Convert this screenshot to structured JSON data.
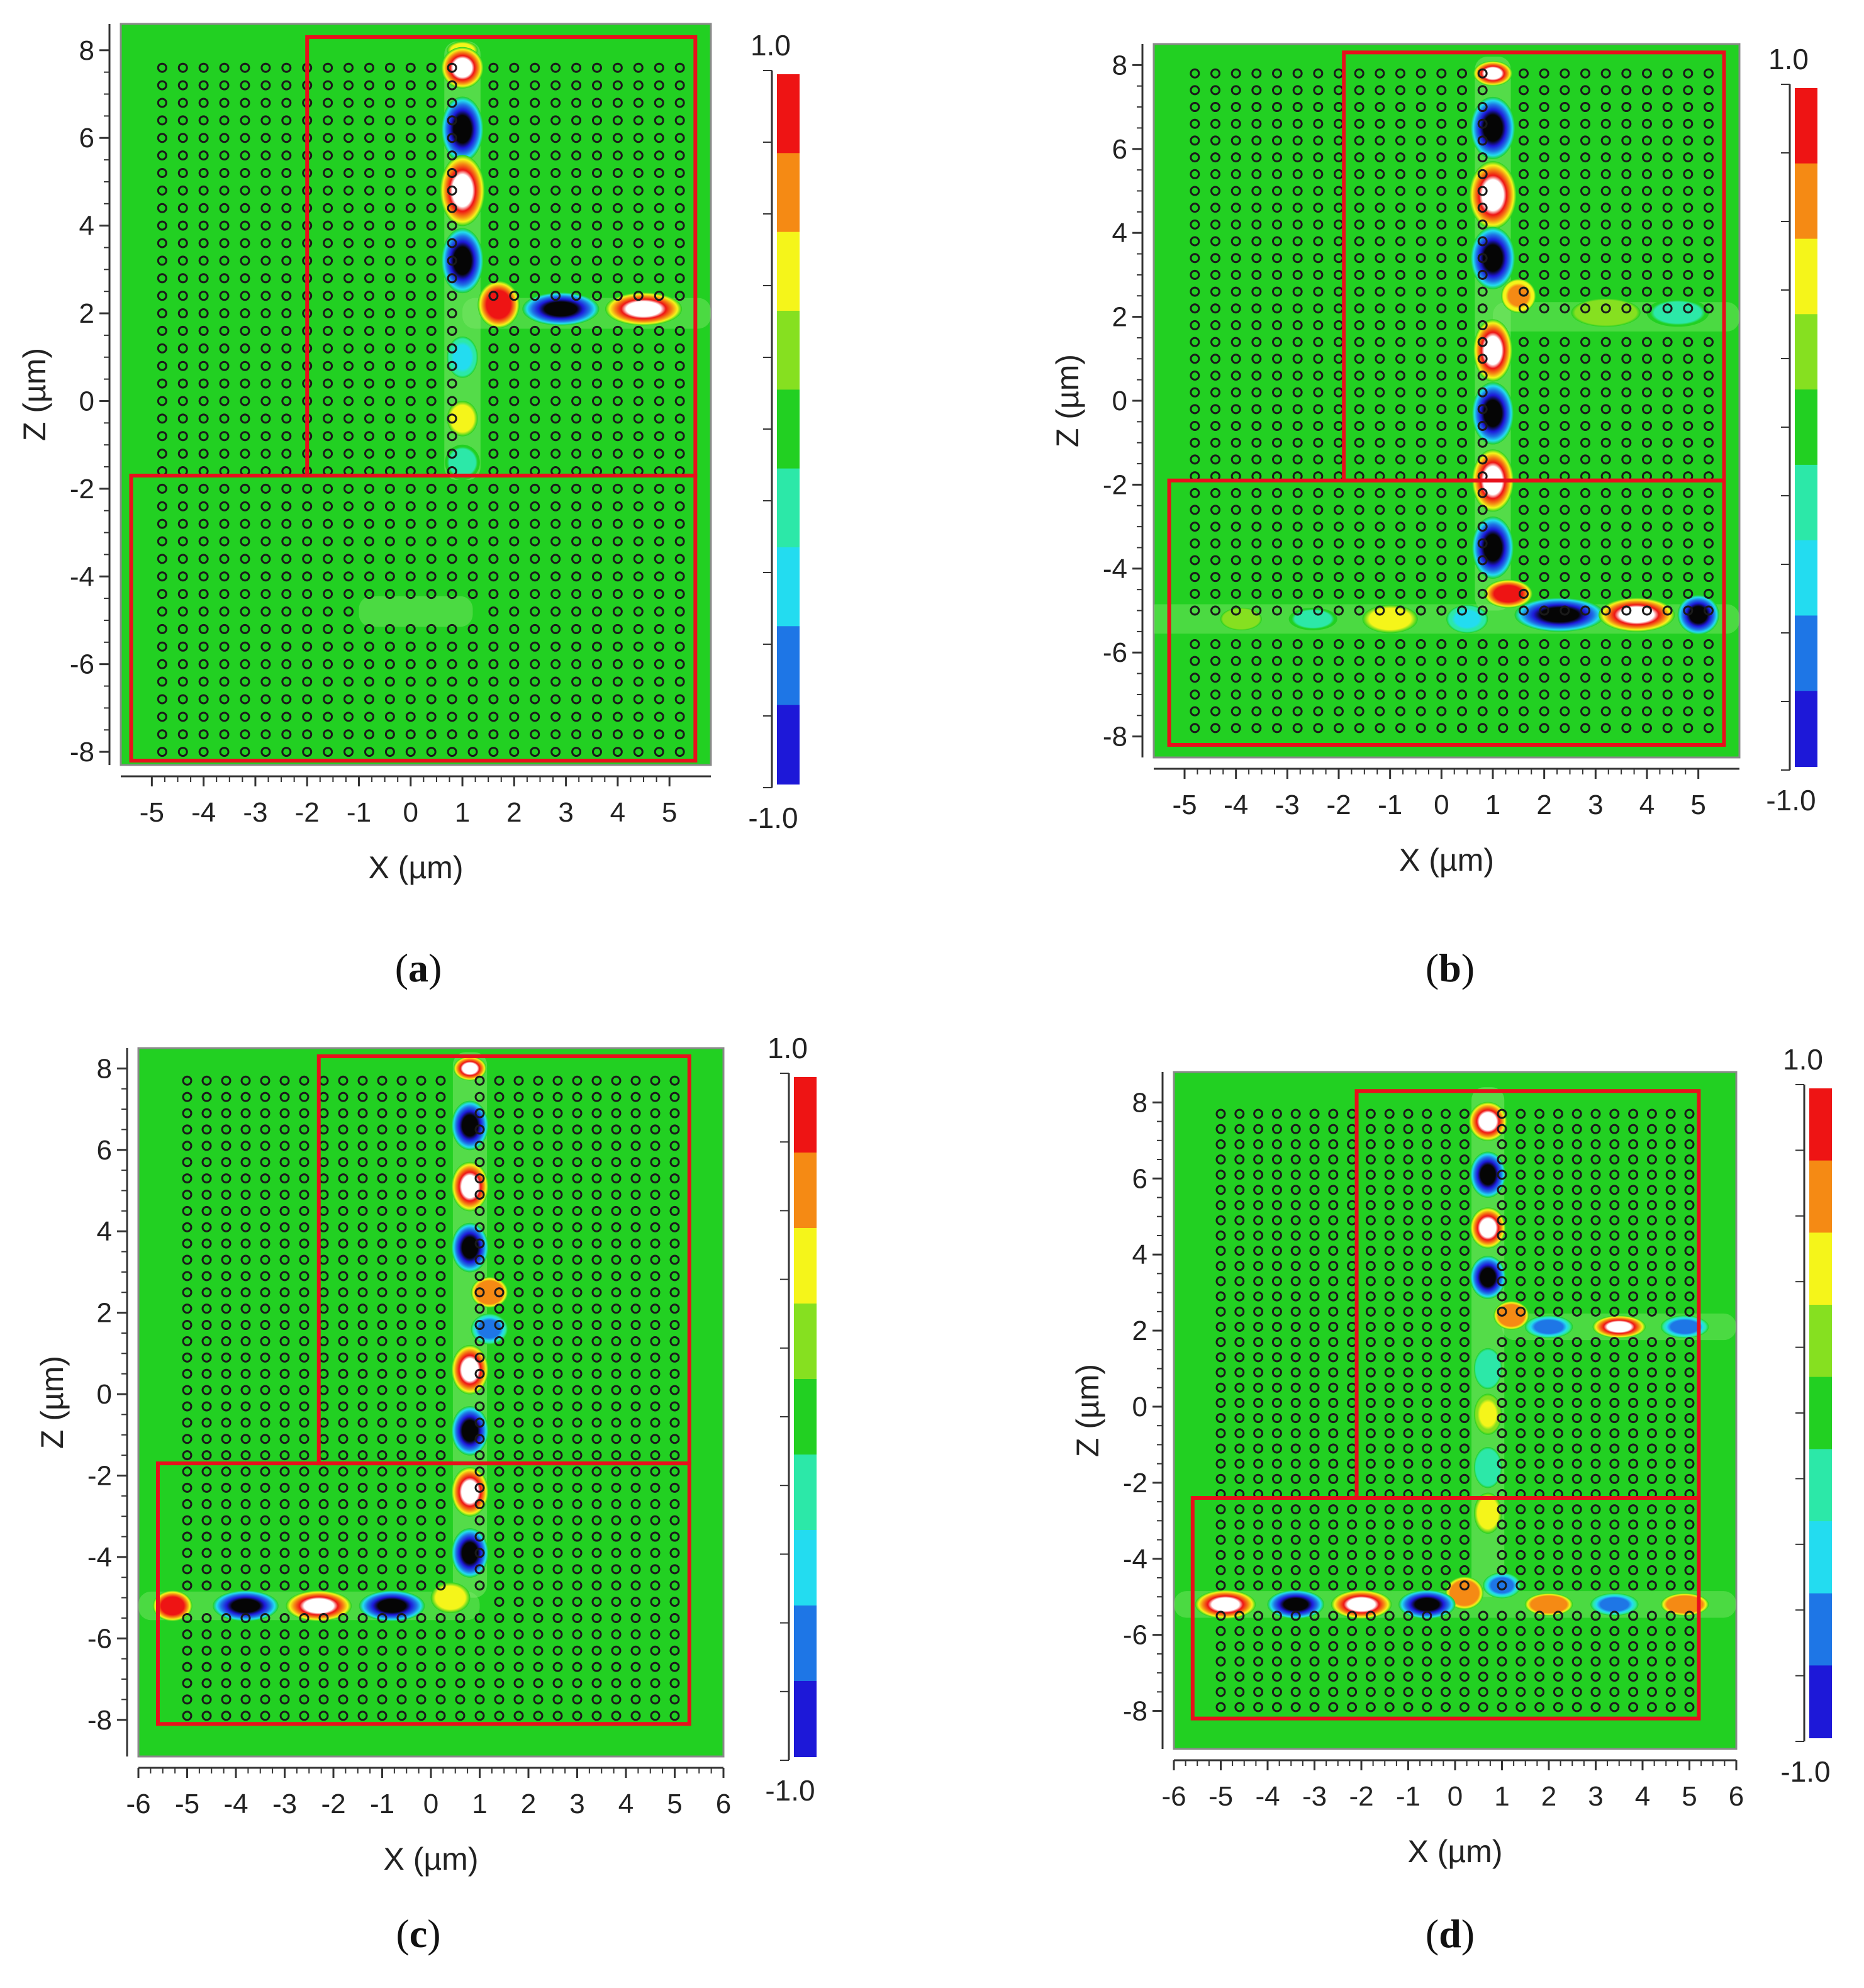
{
  "figure": {
    "panel_count": 4
  },
  "colors": {
    "field_zero": "#22d022",
    "border_red": "#e8101c",
    "rod_dark": "#1a1a1a",
    "colormap": [
      "#1d18d8",
      "#1e76e6",
      "#23dcf0",
      "#2ce8a8",
      "#22d022",
      "#86e020",
      "#f5f51a",
      "#f58a14",
      "#ee1414"
    ]
  },
  "chart_data": [
    {
      "type": "heatmap",
      "caption": "(a)",
      "caption_letter": "a",
      "xlabel": "X (µm)",
      "ylabel": "Z (µm)",
      "xlim": [
        -5.6,
        5.8
      ],
      "ylim": [
        -8.3,
        8.6
      ],
      "xticks": [
        -5,
        -4,
        -3,
        -2,
        -1,
        0,
        1,
        2,
        3,
        4,
        5
      ],
      "yticks": [
        -8,
        -6,
        -4,
        -2,
        0,
        2,
        4,
        6,
        8
      ],
      "colorbar": {
        "max_label": "1.0",
        "min_label": "-1.0",
        "range": [
          -1.0,
          1.0
        ]
      },
      "rod_lattice": {
        "x_start": -4.8,
        "x_end": 5.4,
        "y_start": -8.0,
        "y_end": 7.9,
        "step": 0.4
      },
      "waveguide_paths": [
        {
          "axis": "x",
          "at": 1.0,
          "from": -1.8,
          "to": 8.2
        },
        {
          "axis": "y",
          "at": 2.0,
          "from": 1.0,
          "to": 5.8
        },
        {
          "axis": "y",
          "at": -4.8,
          "from": -1.0,
          "to": 1.2
        }
      ],
      "borders": [
        {
          "x": [
            -2.0,
            5.5
          ],
          "y": [
            -1.7,
            8.3
          ]
        },
        {
          "x": [
            -5.4,
            5.5
          ],
          "y": [
            -8.2,
            -1.7
          ]
        }
      ],
      "field_lobes": [
        {
          "x": 1.0,
          "y": 8.0,
          "value": 0.55,
          "rx": 0.22,
          "ry": 0.15
        },
        {
          "x": 1.0,
          "y": 7.6,
          "value": 1.0,
          "rx": 0.3,
          "ry": 0.35
        },
        {
          "x": 1.0,
          "y": 6.2,
          "value": -1.0,
          "rx": 0.3,
          "ry": 0.55
        },
        {
          "x": 1.0,
          "y": 4.8,
          "value": 1.0,
          "rx": 0.32,
          "ry": 0.6
        },
        {
          "x": 1.0,
          "y": 3.2,
          "value": -1.0,
          "rx": 0.3,
          "ry": 0.55
        },
        {
          "x": 1.7,
          "y": 2.2,
          "value": 0.9,
          "rx": 0.3,
          "ry": 0.4
        },
        {
          "x": 1.0,
          "y": 1.0,
          "value": -0.45,
          "rx": 0.22,
          "ry": 0.35
        },
        {
          "x": 1.0,
          "y": -0.4,
          "value": 0.5,
          "rx": 0.22,
          "ry": 0.3
        },
        {
          "x": 1.0,
          "y": -1.4,
          "value": -0.3,
          "rx": 0.25,
          "ry": 0.3
        },
        {
          "x": 2.9,
          "y": 2.1,
          "value": -0.95,
          "rx": 0.55,
          "ry": 0.28
        },
        {
          "x": 4.5,
          "y": 2.1,
          "value": 1.0,
          "rx": 0.55,
          "ry": 0.28
        }
      ]
    },
    {
      "type": "heatmap",
      "caption": "(b)",
      "caption_letter": "b",
      "xlabel": "X (µm)",
      "ylabel": "Z (µm)",
      "xlim": [
        -5.6,
        5.8
      ],
      "ylim": [
        -8.5,
        8.5
      ],
      "xticks": [
        -5,
        -4,
        -3,
        -2,
        -1,
        0,
        1,
        2,
        3,
        4,
        5
      ],
      "yticks": [
        -8,
        -6,
        -4,
        -2,
        0,
        2,
        4,
        6,
        8
      ],
      "colorbar": {
        "max_label": "1.0",
        "min_label": "-1.0",
        "range": [
          -1.0,
          1.0
        ]
      },
      "rod_lattice": {
        "x_start": -4.8,
        "x_end": 5.4,
        "y_start": -7.8,
        "y_end": 7.9,
        "step": 0.4
      },
      "waveguide_paths": [
        {
          "axis": "x",
          "at": 1.0,
          "from": -5.0,
          "to": 8.2
        },
        {
          "axis": "y",
          "at": 2.0,
          "from": 1.0,
          "to": 5.8
        },
        {
          "axis": "y",
          "at": -5.2,
          "from": -5.8,
          "to": 5.8
        }
      ],
      "borders": [
        {
          "x": [
            -1.9,
            5.5
          ],
          "y": [
            -1.9,
            8.3
          ]
        },
        {
          "x": [
            -5.3,
            5.5
          ],
          "y": [
            -8.2,
            -1.9
          ]
        }
      ],
      "field_lobes": [
        {
          "x": 1.0,
          "y": 7.8,
          "value": 1.0,
          "rx": 0.28,
          "ry": 0.22
        },
        {
          "x": 1.0,
          "y": 6.5,
          "value": -1.0,
          "rx": 0.32,
          "ry": 0.55
        },
        {
          "x": 1.0,
          "y": 4.9,
          "value": 1.0,
          "rx": 0.34,
          "ry": 0.6
        },
        {
          "x": 1.0,
          "y": 3.4,
          "value": -1.0,
          "rx": 0.32,
          "ry": 0.55
        },
        {
          "x": 1.5,
          "y": 2.5,
          "value": 0.8,
          "rx": 0.25,
          "ry": 0.3
        },
        {
          "x": 1.0,
          "y": 1.2,
          "value": 1.0,
          "rx": 0.28,
          "ry": 0.55
        },
        {
          "x": 1.0,
          "y": -0.3,
          "value": -1.0,
          "rx": 0.3,
          "ry": 0.55
        },
        {
          "x": 1.0,
          "y": -1.9,
          "value": 1.0,
          "rx": 0.3,
          "ry": 0.55
        },
        {
          "x": 1.0,
          "y": -3.5,
          "value": -1.0,
          "rx": 0.3,
          "ry": 0.55
        },
        {
          "x": 1.3,
          "y": -4.6,
          "value": 0.9,
          "rx": 0.35,
          "ry": 0.25
        },
        {
          "x": 2.3,
          "y": -5.1,
          "value": -1.0,
          "rx": 0.65,
          "ry": 0.3
        },
        {
          "x": 3.8,
          "y": -5.1,
          "value": 1.0,
          "rx": 0.55,
          "ry": 0.3
        },
        {
          "x": 5.0,
          "y": -5.1,
          "value": -0.95,
          "rx": 0.3,
          "ry": 0.35
        },
        {
          "x": -1.0,
          "y": -5.2,
          "value": 0.6,
          "rx": 0.4,
          "ry": 0.25
        },
        {
          "x": -2.5,
          "y": -5.2,
          "value": -0.25,
          "rx": 0.35,
          "ry": 0.2
        },
        {
          "x": -3.9,
          "y": -5.2,
          "value": 0.25,
          "rx": 0.3,
          "ry": 0.2
        },
        {
          "x": 0.5,
          "y": -5.2,
          "value": -0.4,
          "rx": 0.3,
          "ry": 0.25
        },
        {
          "x": 3.2,
          "y": 2.1,
          "value": 0.25,
          "rx": 0.5,
          "ry": 0.25
        },
        {
          "x": 4.6,
          "y": 2.1,
          "value": -0.25,
          "rx": 0.45,
          "ry": 0.25
        }
      ]
    },
    {
      "type": "heatmap",
      "caption": "(c)",
      "caption_letter": "c",
      "xlabel": "X (µm)",
      "ylabel": "Z (µm)",
      "xlim": [
        -6.0,
        6.0
      ],
      "ylim": [
        -8.9,
        8.5
      ],
      "xticks": [
        -6,
        -5,
        -4,
        -3,
        -2,
        -1,
        0,
        1,
        2,
        3,
        4,
        5,
        6
      ],
      "yticks": [
        -8,
        -6,
        -4,
        -2,
        0,
        2,
        4,
        6,
        8
      ],
      "colorbar": {
        "max_label": "1.0",
        "min_label": "-1.0",
        "range": [
          -1.0,
          1.0
        ]
      },
      "rod_lattice": {
        "x_start": -5.0,
        "x_end": 5.0,
        "y_start": -7.9,
        "y_end": 7.9,
        "step": 0.4
      },
      "waveguide_paths": [
        {
          "axis": "x",
          "at": 0.8,
          "from": -5.0,
          "to": 8.4
        },
        {
          "axis": "y",
          "at": -5.2,
          "from": -6.0,
          "to": 1.0
        }
      ],
      "borders": [
        {
          "x": [
            -2.3,
            5.3
          ],
          "y": [
            -1.7,
            8.3
          ]
        },
        {
          "x": [
            -5.6,
            5.3
          ],
          "y": [
            -8.1,
            -1.7
          ]
        }
      ],
      "field_lobes": [
        {
          "x": 0.8,
          "y": 8.0,
          "value": 1.0,
          "rx": 0.25,
          "ry": 0.22
        },
        {
          "x": 0.8,
          "y": 6.6,
          "value": -0.95,
          "rx": 0.28,
          "ry": 0.45
        },
        {
          "x": 0.8,
          "y": 5.1,
          "value": 1.0,
          "rx": 0.28,
          "ry": 0.45
        },
        {
          "x": 0.8,
          "y": 3.6,
          "value": -0.95,
          "rx": 0.28,
          "ry": 0.45
        },
        {
          "x": 1.2,
          "y": 2.5,
          "value": 0.85,
          "rx": 0.28,
          "ry": 0.28
        },
        {
          "x": 1.2,
          "y": 1.6,
          "value": -0.7,
          "rx": 0.28,
          "ry": 0.28
        },
        {
          "x": 0.8,
          "y": 0.6,
          "value": 1.0,
          "rx": 0.28,
          "ry": 0.45
        },
        {
          "x": 0.8,
          "y": -0.9,
          "value": -0.95,
          "rx": 0.28,
          "ry": 0.45
        },
        {
          "x": 0.8,
          "y": -2.4,
          "value": 1.0,
          "rx": 0.28,
          "ry": 0.45
        },
        {
          "x": 0.8,
          "y": -3.9,
          "value": -0.95,
          "rx": 0.28,
          "ry": 0.45
        },
        {
          "x": 0.4,
          "y": -5.0,
          "value": 0.6,
          "rx": 0.3,
          "ry": 0.28
        },
        {
          "x": -0.8,
          "y": -5.2,
          "value": -0.95,
          "rx": 0.5,
          "ry": 0.28
        },
        {
          "x": -2.3,
          "y": -5.2,
          "value": 1.0,
          "rx": 0.5,
          "ry": 0.28
        },
        {
          "x": -3.8,
          "y": -5.2,
          "value": -0.95,
          "rx": 0.5,
          "ry": 0.28
        },
        {
          "x": -5.3,
          "y": -5.2,
          "value": 0.9,
          "rx": 0.3,
          "ry": 0.28
        }
      ]
    },
    {
      "type": "heatmap",
      "caption": "(d)",
      "caption_letter": "d",
      "xlabel": "X (µm)",
      "ylabel": "Z (µm)",
      "xlim": [
        -6.0,
        6.0
      ],
      "ylim": [
        -9.0,
        8.8
      ],
      "xticks": [
        -6,
        -5,
        -4,
        -3,
        -2,
        -1,
        0,
        1,
        2,
        3,
        4,
        5,
        6
      ],
      "yticks": [
        -8,
        -6,
        -4,
        -2,
        0,
        2,
        4,
        6,
        8
      ],
      "colorbar": {
        "max_label": "1.0",
        "min_label": "-1.0",
        "range": [
          -1.0,
          1.0
        ]
      },
      "rod_lattice": {
        "x_start": -5.0,
        "x_end": 5.0,
        "y_start": -7.9,
        "y_end": 7.9,
        "step": 0.4
      },
      "waveguide_paths": [
        {
          "axis": "x",
          "at": 0.7,
          "from": -5.0,
          "to": 8.4
        },
        {
          "axis": "y",
          "at": 2.1,
          "from": 1.0,
          "to": 6.0
        },
        {
          "axis": "y",
          "at": -5.2,
          "from": -6.0,
          "to": 6.0
        }
      ],
      "borders": [
        {
          "x": [
            -2.1,
            5.2
          ],
          "y": [
            -2.4,
            8.3
          ]
        },
        {
          "x": [
            -5.6,
            5.2
          ],
          "y": [
            -8.2,
            -2.4
          ]
        }
      ],
      "field_lobes": [
        {
          "x": 0.7,
          "y": 7.5,
          "value": 1.0,
          "rx": 0.3,
          "ry": 0.38
        },
        {
          "x": 0.7,
          "y": 6.1,
          "value": -1.0,
          "rx": 0.28,
          "ry": 0.45
        },
        {
          "x": 0.7,
          "y": 4.7,
          "value": 1.0,
          "rx": 0.28,
          "ry": 0.4
        },
        {
          "x": 0.7,
          "y": 3.4,
          "value": -1.0,
          "rx": 0.28,
          "ry": 0.42
        },
        {
          "x": 1.2,
          "y": 2.4,
          "value": 0.85,
          "rx": 0.28,
          "ry": 0.28
        },
        {
          "x": 2.0,
          "y": 2.1,
          "value": -0.85,
          "rx": 0.38,
          "ry": 0.22
        },
        {
          "x": 3.5,
          "y": 2.1,
          "value": 0.95,
          "rx": 0.42,
          "ry": 0.22
        },
        {
          "x": 4.9,
          "y": 2.1,
          "value": -0.85,
          "rx": 0.38,
          "ry": 0.22
        },
        {
          "x": 0.7,
          "y": 1.0,
          "value": -0.35,
          "rx": 0.22,
          "ry": 0.4
        },
        {
          "x": 0.7,
          "y": -0.2,
          "value": 0.45,
          "rx": 0.22,
          "ry": 0.4
        },
        {
          "x": 0.7,
          "y": -1.6,
          "value": -0.35,
          "rx": 0.22,
          "ry": 0.4
        },
        {
          "x": 0.7,
          "y": -2.8,
          "value": 0.5,
          "rx": 0.22,
          "ry": 0.4
        },
        {
          "x": 1.0,
          "y": -4.7,
          "value": -0.75,
          "rx": 0.3,
          "ry": 0.25
        },
        {
          "x": 0.2,
          "y": -4.9,
          "value": 0.85,
          "rx": 0.3,
          "ry": 0.32
        },
        {
          "x": -0.6,
          "y": -5.2,
          "value": -1.0,
          "rx": 0.45,
          "ry": 0.28
        },
        {
          "x": -2.0,
          "y": -5.2,
          "value": 1.0,
          "rx": 0.48,
          "ry": 0.28
        },
        {
          "x": -3.4,
          "y": -5.2,
          "value": -1.0,
          "rx": 0.45,
          "ry": 0.28
        },
        {
          "x": -4.9,
          "y": -5.2,
          "value": 1.0,
          "rx": 0.48,
          "ry": 0.28
        },
        {
          "x": 2.0,
          "y": -5.2,
          "value": 0.85,
          "rx": 0.38,
          "ry": 0.22
        },
        {
          "x": 3.4,
          "y": -5.2,
          "value": -0.75,
          "rx": 0.38,
          "ry": 0.22
        },
        {
          "x": 4.9,
          "y": -5.2,
          "value": 0.85,
          "rx": 0.38,
          "ry": 0.22
        }
      ]
    }
  ]
}
